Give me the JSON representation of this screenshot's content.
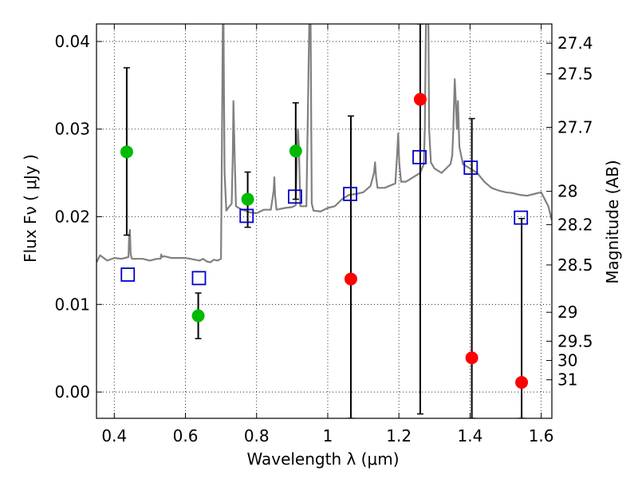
{
  "chart_data": {
    "type": "scatter",
    "xlabel": "Wavelength  λ (μm)",
    "ylabel": "Flux  Fν  ( μJy )",
    "ylabel_right": "Magnitude (AB)",
    "xlim": [
      0.35,
      1.63
    ],
    "ylim": [
      -0.003,
      0.042
    ],
    "grid": true,
    "x_ticks": [
      0.4,
      0.6,
      0.8,
      1.0,
      1.2,
      1.4,
      1.6
    ],
    "x_tick_labels": [
      "0.4",
      "0.6",
      "0.8",
      "1",
      "1.2",
      "1.4",
      "1.6"
    ],
    "y_ticks": [
      0.0,
      0.01,
      0.02,
      0.03,
      0.04
    ],
    "y_tick_labels": [
      "0.00",
      "0.01",
      "0.02",
      "0.03",
      "0.04"
    ],
    "right_ticks": [
      {
        "label": "27.4",
        "flux": 0.0398
      },
      {
        "label": "27.5",
        "flux": 0.0363
      },
      {
        "label": "27.7",
        "flux": 0.0302
      },
      {
        "label": "28",
        "flux": 0.0229
      },
      {
        "label": "28.2",
        "flux": 0.0191
      },
      {
        "label": "28.5",
        "flux": 0.0145
      },
      {
        "label": "29",
        "flux": 0.0091
      },
      {
        "label": "29.5",
        "flux": 0.0058
      },
      {
        "label": "30",
        "flux": 0.0036
      },
      {
        "label": "31",
        "flux": 0.0014
      }
    ],
    "series": [
      {
        "color": "#00bb00",
        "marker": "circle",
        "points": [
          {
            "x": 0.435,
            "y": 0.0274,
            "lo": 0.0179,
            "hi": 0.037
          },
          {
            "x": 0.636,
            "y": 0.0087,
            "lo": 0.0061,
            "hi": 0.0113
          },
          {
            "x": 0.775,
            "y": 0.022,
            "lo": 0.0188,
            "hi": 0.0251
          },
          {
            "x": 0.91,
            "y": 0.0275,
            "lo": 0.022,
            "hi": 0.033
          }
        ]
      },
      {
        "color": "#ff0000",
        "marker": "circle",
        "points": [
          {
            "x": 1.065,
            "y": 0.0129,
            "lo": -0.003,
            "hi": 0.0315
          },
          {
            "x": 1.26,
            "y": 0.0334,
            "lo": -0.0025,
            "hi": 0.042
          },
          {
            "x": 1.405,
            "y": 0.0039,
            "lo": -0.003,
            "hi": 0.0312
          },
          {
            "x": 1.545,
            "y": 0.0011,
            "lo": -0.003,
            "hi": 0.0198
          }
        ]
      },
      {
        "color": "#0000cc",
        "marker": "open-square",
        "points": [
          {
            "x": 0.438,
            "y": 0.0134
          },
          {
            "x": 0.638,
            "y": 0.013
          },
          {
            "x": 0.772,
            "y": 0.0201
          },
          {
            "x": 0.908,
            "y": 0.0223
          },
          {
            "x": 1.063,
            "y": 0.0226
          },
          {
            "x": 1.258,
            "y": 0.0268
          },
          {
            "x": 1.402,
            "y": 0.0256
          },
          {
            "x": 1.543,
            "y": 0.0199
          }
        ]
      }
    ],
    "template_spectrum": {
      "color": "#808080",
      "x": [
        0.35,
        0.36,
        0.38,
        0.4,
        0.42,
        0.44,
        0.442,
        0.444,
        0.446,
        0.448,
        0.45,
        0.48,
        0.5,
        0.52,
        0.53,
        0.532,
        0.534,
        0.54,
        0.56,
        0.6,
        0.64,
        0.65,
        0.66,
        0.67,
        0.68,
        0.69,
        0.7,
        0.702,
        0.705,
        0.706,
        0.707,
        0.708,
        0.71,
        0.715,
        0.72,
        0.73,
        0.733,
        0.735,
        0.738,
        0.742,
        0.75,
        0.76,
        0.775,
        0.78,
        0.8,
        0.82,
        0.84,
        0.848,
        0.85,
        0.852,
        0.856,
        0.88,
        0.9,
        0.91,
        0.914,
        0.916,
        0.919,
        0.923,
        0.94,
        0.948,
        0.95,
        0.952,
        0.955,
        0.96,
        0.98,
        1.0,
        1.02,
        1.04,
        1.06,
        1.08,
        1.1,
        1.12,
        1.13,
        1.133,
        1.136,
        1.14,
        1.16,
        1.19,
        1.195,
        1.198,
        1.201,
        1.206,
        1.22,
        1.24,
        1.26,
        1.27,
        1.273,
        1.276,
        1.28,
        1.283,
        1.285,
        1.29,
        1.3,
        1.32,
        1.345,
        1.35,
        1.353,
        1.357,
        1.36,
        1.363,
        1.366,
        1.37,
        1.38,
        1.4,
        1.42,
        1.44,
        1.46,
        1.48,
        1.5,
        1.52,
        1.54,
        1.56,
        1.58,
        1.6,
        1.62,
        1.63
      ],
      "y": [
        0.0148,
        0.0156,
        0.015,
        0.0153,
        0.0152,
        0.0154,
        0.018,
        0.0185,
        0.0158,
        0.0154,
        0.0152,
        0.0152,
        0.015,
        0.0152,
        0.0152,
        0.0157,
        0.0154,
        0.0155,
        0.0153,
        0.0153,
        0.015,
        0.0152,
        0.0149,
        0.0148,
        0.0151,
        0.015,
        0.0152,
        0.025,
        0.042,
        0.042,
        0.042,
        0.036,
        0.025,
        0.0207,
        0.021,
        0.0215,
        0.027,
        0.0332,
        0.0275,
        0.0212,
        0.021,
        0.0208,
        0.0206,
        0.0205,
        0.0204,
        0.0208,
        0.0208,
        0.023,
        0.0245,
        0.0225,
        0.0208,
        0.021,
        0.0211,
        0.0213,
        0.028,
        0.03,
        0.028,
        0.0212,
        0.0212,
        0.042,
        0.042,
        0.042,
        0.0215,
        0.0207,
        0.0206,
        0.021,
        0.0212,
        0.022,
        0.0225,
        0.0226,
        0.0228,
        0.0235,
        0.025,
        0.0262,
        0.0245,
        0.0233,
        0.0233,
        0.0238,
        0.027,
        0.0295,
        0.0262,
        0.024,
        0.024,
        0.0245,
        0.025,
        0.026,
        0.03,
        0.042,
        0.042,
        0.042,
        0.03,
        0.0262,
        0.0255,
        0.025,
        0.026,
        0.027,
        0.03,
        0.0357,
        0.033,
        0.03,
        0.0332,
        0.028,
        0.026,
        0.0255,
        0.025,
        0.024,
        0.0233,
        0.023,
        0.0228,
        0.0227,
        0.0225,
        0.0224,
        0.0226,
        0.0228,
        0.0212,
        0.0196
      ]
    }
  }
}
